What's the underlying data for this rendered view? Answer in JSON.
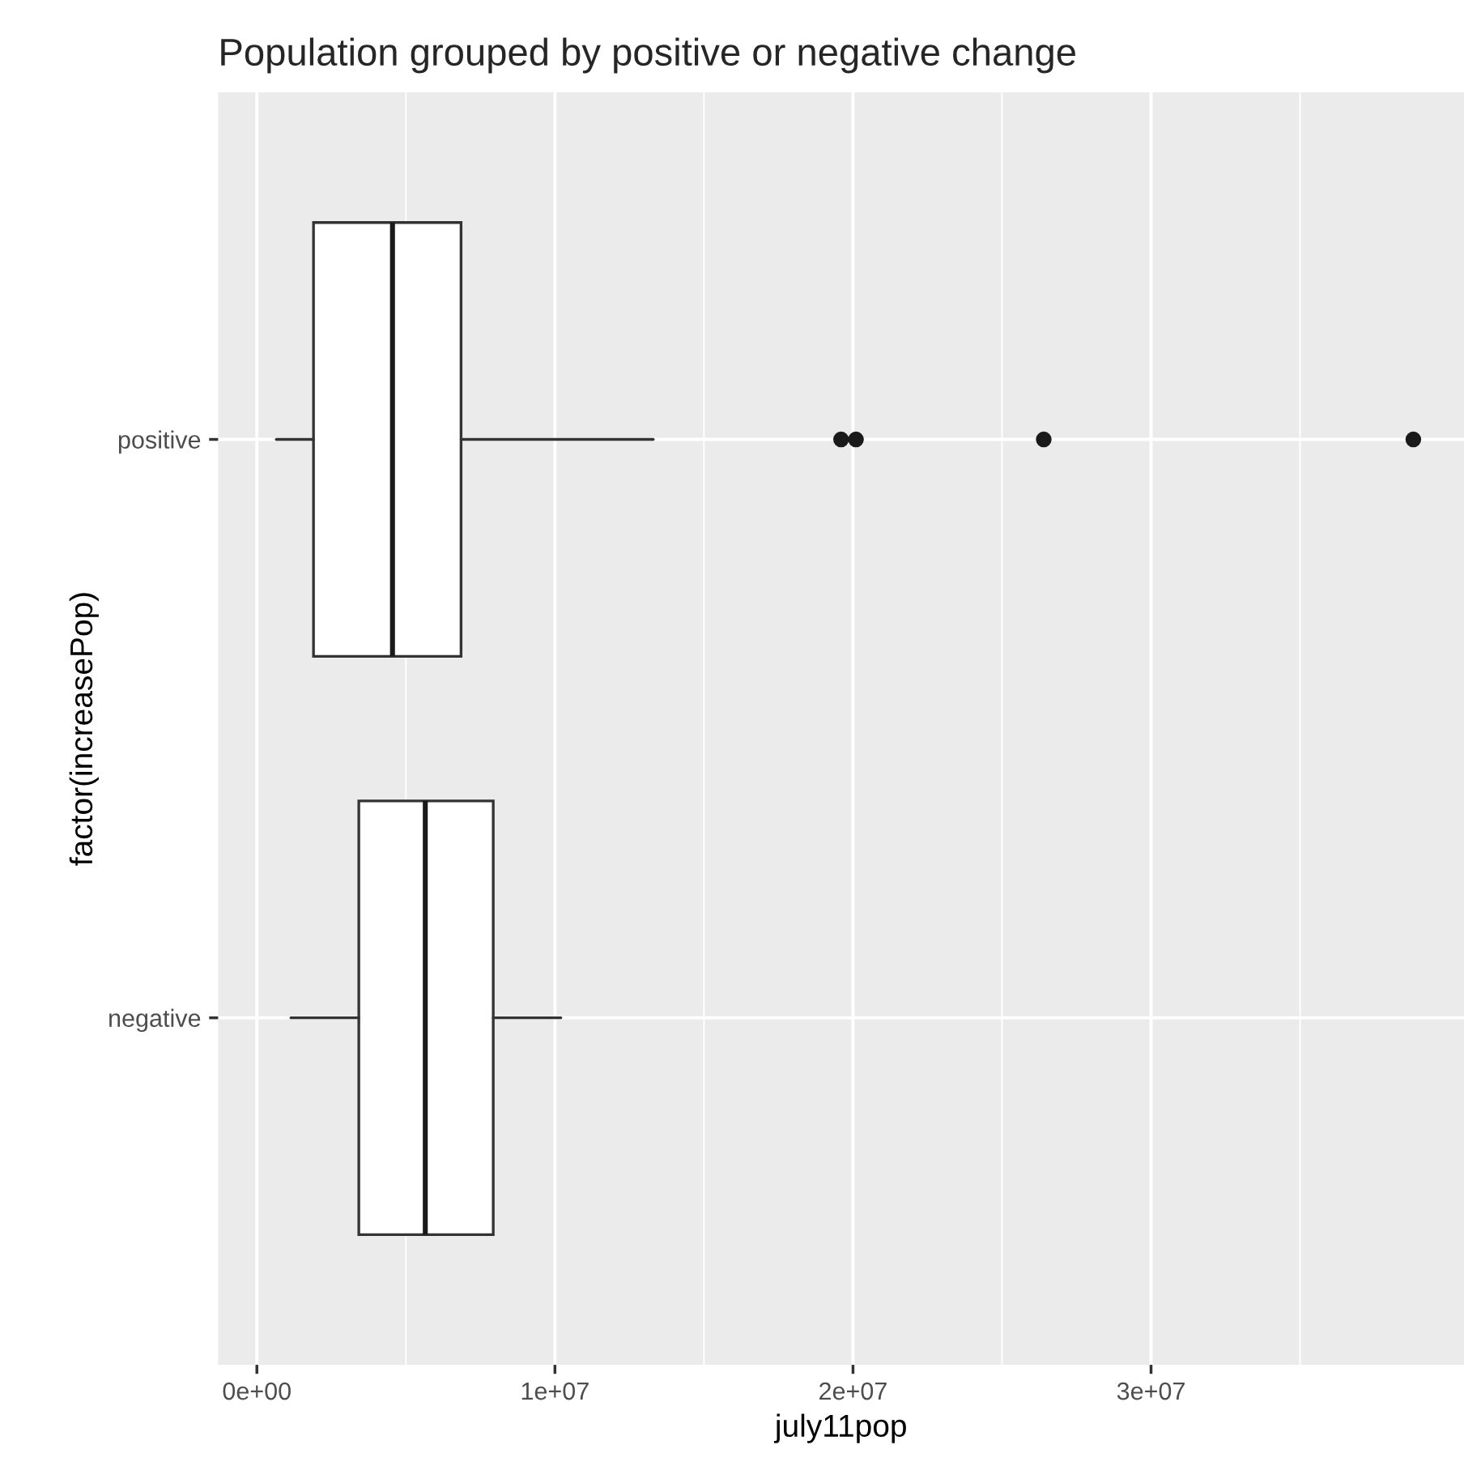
{
  "chart_data": {
    "type": "box",
    "title": "Population grouped by positive or negative change",
    "xlabel": "july11pop",
    "ylabel": "factor(increasePop)",
    "orientation": "horizontal",
    "categories": [
      "positive",
      "negative"
    ],
    "boxes": [
      {
        "low": 650000,
        "q1": 1900000,
        "median": 4550000,
        "q3": 6850000,
        "high": 13300000,
        "outliers": [
          19600000,
          20100000,
          26400000,
          38800000
        ]
      },
      {
        "low": 1140000,
        "q1": 3420000,
        "median": 5650000,
        "q3": 7930000,
        "high": 10200000
      }
    ],
    "xlim": [
      -1300000,
      40500000
    ],
    "xticks": [
      {
        "value": 0,
        "label": "0e+00"
      },
      {
        "value": 10000000,
        "label": "1e+07"
      },
      {
        "value": 20000000,
        "label": "2e+07"
      },
      {
        "value": 30000000,
        "label": "3e+07"
      }
    ],
    "grid": true
  }
}
